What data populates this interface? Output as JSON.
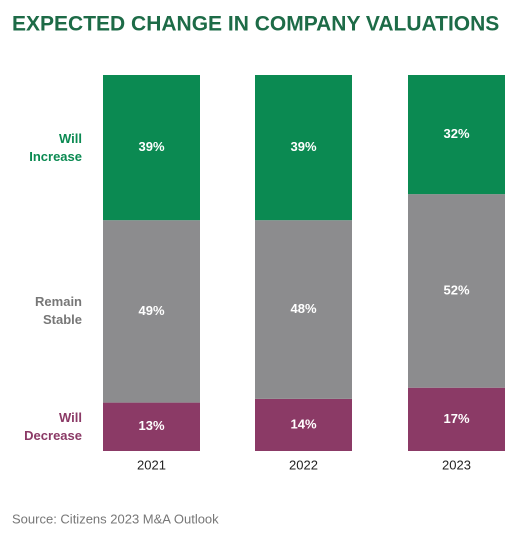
{
  "chart_data": {
    "type": "stacked-bar",
    "title": "EXPECTED CHANGE IN COMPANY VALUATIONS",
    "categories": [
      "2021",
      "2022",
      "2023"
    ],
    "series": [
      {
        "name": "Will Increase",
        "color": "#0b8a52",
        "values": [
          39,
          39,
          32
        ],
        "value_labels": [
          "39%",
          "39%",
          "32%"
        ]
      },
      {
        "name": "Remain Stable",
        "color": "#8c8c8e",
        "values": [
          49,
          48,
          52
        ],
        "value_labels": [
          "49%",
          "48%",
          "52%"
        ]
      },
      {
        "name": "Will Decrease",
        "color": "#8b3a66",
        "values": [
          13,
          14,
          17
        ],
        "value_labels": [
          "13%",
          "14%",
          "17%"
        ]
      }
    ],
    "source": "Source: Citizens 2023 M&A Outlook"
  }
}
